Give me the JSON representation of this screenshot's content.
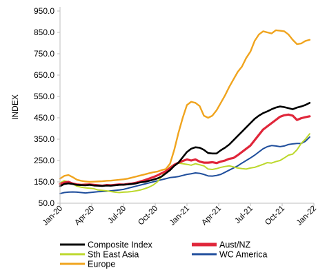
{
  "chart_data": {
    "type": "line",
    "title": "",
    "xlabel": "",
    "ylabel": "INDEX",
    "ylim": [
      50,
      950
    ],
    "y_ticks": [
      "50.0",
      "150.0",
      "250.0",
      "350.0",
      "450.0",
      "550.0",
      "650.0",
      "750.0",
      "850.0",
      "950.0"
    ],
    "x_ticks": [
      "Jan-20",
      "Apr-20",
      "Jul-20",
      "Oct-20",
      "Jan-21",
      "Apr-21",
      "Jul-21",
      "Oct-21",
      "Jan-22"
    ],
    "grid": false,
    "legend_position": "bottom",
    "series": [
      {
        "name": "Composite Index",
        "color": "#000000",
        "points": [
          [
            0,
            130
          ],
          [
            2,
            140
          ],
          [
            4,
            143
          ],
          [
            6,
            140
          ],
          [
            8,
            136
          ],
          [
            10,
            135
          ],
          [
            12,
            134
          ],
          [
            14,
            136
          ],
          [
            16,
            133
          ],
          [
            18,
            132
          ],
          [
            20,
            131
          ],
          [
            22,
            133
          ],
          [
            24,
            132
          ],
          [
            26,
            134
          ],
          [
            28,
            136
          ],
          [
            30,
            137
          ],
          [
            32,
            138
          ],
          [
            34,
            140
          ],
          [
            36,
            143
          ],
          [
            38,
            148
          ],
          [
            40,
            150
          ],
          [
            42,
            155
          ],
          [
            44,
            160
          ],
          [
            46,
            166
          ],
          [
            48,
            175
          ],
          [
            50,
            190
          ],
          [
            52,
            205
          ],
          [
            54,
            225
          ],
          [
            56,
            240
          ],
          [
            58,
            265
          ],
          [
            60,
            290
          ],
          [
            62,
            305
          ],
          [
            64,
            312
          ],
          [
            66,
            310
          ],
          [
            68,
            300
          ],
          [
            70,
            285
          ],
          [
            72,
            283
          ],
          [
            74,
            283
          ],
          [
            76,
            298
          ],
          [
            78,
            310
          ],
          [
            80,
            325
          ],
          [
            82,
            345
          ],
          [
            84,
            365
          ],
          [
            86,
            385
          ],
          [
            88,
            405
          ],
          [
            90,
            425
          ],
          [
            92,
            445
          ],
          [
            94,
            460
          ],
          [
            96,
            472
          ],
          [
            98,
            480
          ],
          [
            100,
            490
          ],
          [
            102,
            498
          ],
          [
            104,
            503
          ],
          [
            106,
            500
          ],
          [
            108,
            495
          ],
          [
            110,
            490
          ],
          [
            112,
            498
          ],
          [
            114,
            503
          ],
          [
            116,
            510
          ],
          [
            118,
            520
          ]
        ]
      },
      {
        "name": "Aust/NZ",
        "color": "#e0263a",
        "points": [
          [
            0,
            140
          ],
          [
            2,
            147
          ],
          [
            4,
            150
          ],
          [
            6,
            142
          ],
          [
            8,
            138
          ],
          [
            10,
            136
          ],
          [
            12,
            137
          ],
          [
            14,
            138
          ],
          [
            16,
            136
          ],
          [
            18,
            134
          ],
          [
            20,
            132
          ],
          [
            22,
            135
          ],
          [
            24,
            134
          ],
          [
            26,
            136
          ],
          [
            28,
            138
          ],
          [
            30,
            137
          ],
          [
            32,
            140
          ],
          [
            34,
            142
          ],
          [
            36,
            146
          ],
          [
            38,
            152
          ],
          [
            40,
            158
          ],
          [
            42,
            165
          ],
          [
            44,
            172
          ],
          [
            46,
            180
          ],
          [
            48,
            190
          ],
          [
            50,
            200
          ],
          [
            52,
            215
          ],
          [
            54,
            230
          ],
          [
            56,
            240
          ],
          [
            58,
            248
          ],
          [
            60,
            255
          ],
          [
            62,
            250
          ],
          [
            64,
            255
          ],
          [
            66,
            245
          ],
          [
            68,
            240
          ],
          [
            70,
            240
          ],
          [
            72,
            242
          ],
          [
            74,
            238
          ],
          [
            76,
            245
          ],
          [
            78,
            250
          ],
          [
            80,
            258
          ],
          [
            82,
            262
          ],
          [
            84,
            275
          ],
          [
            86,
            290
          ],
          [
            88,
            305
          ],
          [
            90,
            320
          ],
          [
            92,
            345
          ],
          [
            94,
            370
          ],
          [
            96,
            395
          ],
          [
            98,
            410
          ],
          [
            100,
            425
          ],
          [
            102,
            440
          ],
          [
            104,
            455
          ],
          [
            106,
            462
          ],
          [
            108,
            465
          ],
          [
            110,
            460
          ],
          [
            112,
            440
          ],
          [
            114,
            448
          ],
          [
            116,
            453
          ],
          [
            118,
            457
          ]
        ]
      },
      {
        "name": "Sth East Asia",
        "color": "#bcd82c",
        "points": [
          [
            0,
            145
          ],
          [
            2,
            155
          ],
          [
            4,
            150
          ],
          [
            6,
            140
          ],
          [
            8,
            130
          ],
          [
            10,
            125
          ],
          [
            12,
            122
          ],
          [
            14,
            120
          ],
          [
            16,
            118
          ],
          [
            18,
            112
          ],
          [
            20,
            110
          ],
          [
            22,
            108
          ],
          [
            24,
            105
          ],
          [
            26,
            102
          ],
          [
            28,
            100
          ],
          [
            30,
            102
          ],
          [
            32,
            103
          ],
          [
            34,
            105
          ],
          [
            36,
            108
          ],
          [
            38,
            112
          ],
          [
            40,
            118
          ],
          [
            42,
            125
          ],
          [
            44,
            135
          ],
          [
            46,
            150
          ],
          [
            48,
            175
          ],
          [
            50,
            200
          ],
          [
            52,
            220
          ],
          [
            54,
            232
          ],
          [
            56,
            238
          ],
          [
            58,
            235
          ],
          [
            60,
            232
          ],
          [
            62,
            228
          ],
          [
            64,
            235
          ],
          [
            66,
            230
          ],
          [
            68,
            225
          ],
          [
            70,
            210
          ],
          [
            72,
            208
          ],
          [
            74,
            212
          ],
          [
            76,
            218
          ],
          [
            78,
            222
          ],
          [
            80,
            225
          ],
          [
            82,
            220
          ],
          [
            84,
            215
          ],
          [
            86,
            212
          ],
          [
            88,
            210
          ],
          [
            90,
            215
          ],
          [
            92,
            218
          ],
          [
            94,
            225
          ],
          [
            96,
            232
          ],
          [
            98,
            240
          ],
          [
            100,
            238
          ],
          [
            102,
            245
          ],
          [
            104,
            250
          ],
          [
            106,
            262
          ],
          [
            108,
            275
          ],
          [
            110,
            280
          ],
          [
            112,
            300
          ],
          [
            114,
            330
          ],
          [
            116,
            350
          ],
          [
            118,
            375
          ]
        ]
      },
      {
        "name": "WC America",
        "color": "#1f4e9c",
        "points": [
          [
            0,
            95
          ],
          [
            2,
            100
          ],
          [
            4,
            102
          ],
          [
            6,
            103
          ],
          [
            8,
            102
          ],
          [
            10,
            100
          ],
          [
            12,
            98
          ],
          [
            14,
            100
          ],
          [
            16,
            102
          ],
          [
            18,
            104
          ],
          [
            20,
            105
          ],
          [
            22,
            106
          ],
          [
            24,
            108
          ],
          [
            26,
            110
          ],
          [
            28,
            112
          ],
          [
            30,
            115
          ],
          [
            32,
            120
          ],
          [
            34,
            125
          ],
          [
            36,
            130
          ],
          [
            38,
            135
          ],
          [
            40,
            140
          ],
          [
            42,
            145
          ],
          [
            44,
            150
          ],
          [
            46,
            155
          ],
          [
            48,
            160
          ],
          [
            50,
            165
          ],
          [
            52,
            170
          ],
          [
            54,
            172
          ],
          [
            56,
            175
          ],
          [
            58,
            180
          ],
          [
            60,
            185
          ],
          [
            62,
            188
          ],
          [
            64,
            192
          ],
          [
            66,
            190
          ],
          [
            68,
            185
          ],
          [
            70,
            178
          ],
          [
            72,
            177
          ],
          [
            74,
            180
          ],
          [
            76,
            185
          ],
          [
            78,
            195
          ],
          [
            80,
            205
          ],
          [
            82,
            215
          ],
          [
            84,
            225
          ],
          [
            86,
            238
          ],
          [
            88,
            250
          ],
          [
            90,
            262
          ],
          [
            92,
            275
          ],
          [
            94,
            290
          ],
          [
            96,
            305
          ],
          [
            98,
            315
          ],
          [
            100,
            320
          ],
          [
            102,
            318
          ],
          [
            104,
            315
          ],
          [
            106,
            318
          ],
          [
            108,
            325
          ],
          [
            110,
            328
          ],
          [
            112,
            330
          ],
          [
            114,
            330
          ],
          [
            116,
            340
          ],
          [
            118,
            360
          ]
        ]
      },
      {
        "name": "Europe",
        "color": "#f0a41e",
        "points": [
          [
            0,
            165
          ],
          [
            2,
            178
          ],
          [
            4,
            182
          ],
          [
            6,
            172
          ],
          [
            8,
            160
          ],
          [
            10,
            155
          ],
          [
            12,
            152
          ],
          [
            14,
            150
          ],
          [
            16,
            151
          ],
          [
            18,
            152
          ],
          [
            20,
            153
          ],
          [
            22,
            155
          ],
          [
            24,
            156
          ],
          [
            26,
            158
          ],
          [
            28,
            160
          ],
          [
            30,
            162
          ],
          [
            32,
            165
          ],
          [
            34,
            170
          ],
          [
            36,
            175
          ],
          [
            38,
            180
          ],
          [
            40,
            185
          ],
          [
            42,
            190
          ],
          [
            44,
            195
          ],
          [
            46,
            198
          ],
          [
            48,
            205
          ],
          [
            50,
            210
          ],
          [
            52,
            235
          ],
          [
            54,
            300
          ],
          [
            56,
            380
          ],
          [
            58,
            450
          ],
          [
            60,
            510
          ],
          [
            62,
            525
          ],
          [
            64,
            520
          ],
          [
            66,
            505
          ],
          [
            68,
            460
          ],
          [
            70,
            450
          ],
          [
            72,
            460
          ],
          [
            74,
            485
          ],
          [
            76,
            520
          ],
          [
            78,
            555
          ],
          [
            80,
            595
          ],
          [
            82,
            630
          ],
          [
            84,
            665
          ],
          [
            86,
            690
          ],
          [
            88,
            730
          ],
          [
            90,
            760
          ],
          [
            92,
            810
          ],
          [
            94,
            840
          ],
          [
            96,
            855
          ],
          [
            98,
            850
          ],
          [
            100,
            845
          ],
          [
            102,
            860
          ],
          [
            104,
            858
          ],
          [
            106,
            855
          ],
          [
            108,
            840
          ],
          [
            110,
            815
          ],
          [
            112,
            795
          ],
          [
            114,
            798
          ],
          [
            116,
            810
          ],
          [
            118,
            815
          ]
        ]
      }
    ]
  }
}
